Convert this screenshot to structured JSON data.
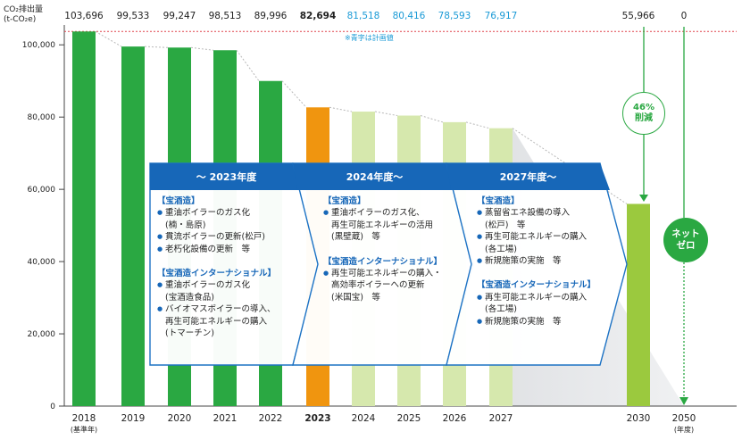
{
  "chart_data": {
    "type": "bar",
    "y_axis_title_line1": "CO₂排出量",
    "y_axis_title_line2": "(t-CO₂e)",
    "ylim": [
      0,
      105000
    ],
    "yticks": [
      0,
      20000,
      40000,
      60000,
      80000,
      100000
    ],
    "ytick_labels": [
      "0",
      "20,000",
      "40,000",
      "60,000",
      "80,000",
      "100,000"
    ],
    "x_unit_label": "(年度)",
    "categories": [
      "2018",
      "2019",
      "2020",
      "2021",
      "2022",
      "2023",
      "2024",
      "2025",
      "2026",
      "2027",
      "2030",
      "2050"
    ],
    "category_sublabels": {
      "2018": "(基準年)"
    },
    "values": [
      103696,
      99533,
      99247,
      98513,
      89996,
      82694,
      81518,
      80416,
      78593,
      76917,
      55966,
      0
    ],
    "value_labels": [
      "103,696",
      "99,533",
      "99,247",
      "98,513",
      "89,996",
      "82,694",
      "81,518",
      "80,416",
      "78,593",
      "76,917",
      "55,966",
      "0"
    ],
    "bar_kind": [
      "actual",
      "actual",
      "actual",
      "actual",
      "actual",
      "current",
      "plan",
      "plan",
      "plan",
      "plan",
      "target",
      "zero"
    ],
    "note": "※青字は計画値",
    "reduction_label_line1": "46%",
    "reduction_label_line2": "削減",
    "net_zero_line1": "ネット",
    "net_zero_line2": "ゼロ",
    "colors": {
      "actual": "#2aa842",
      "current": "#f0950f",
      "plan": "#d6e8ad",
      "target": "#9bc93e",
      "plan_label": "#1a9ad6",
      "reference_line": "#e0454d",
      "panel_head": "#1767b8",
      "panel_border": "#1c72c4",
      "arrow": "#2aa842"
    }
  },
  "panels": [
    {
      "header": "～ 2023年度",
      "groups": [
        {
          "title": "【宝酒造】",
          "items": [
            {
              "line1": "重油ボイラーのガス化",
              "line2": "(楠・島原)"
            },
            {
              "line1": "貫流ボイラーの更新(松戸)",
              "line2": ""
            },
            {
              "line1": "老朽化設備の更新　等",
              "line2": ""
            }
          ]
        },
        {
          "title": "【宝酒造インターナショナル】",
          "items": [
            {
              "line1": "重油ボイラーのガス化",
              "line2": "(宝酒造食品)"
            },
            {
              "line1": "バイオマスボイラーの導入、",
              "line2": "再生可能エネルギーの購入",
              "line3": "(トマーチン)"
            }
          ]
        }
      ]
    },
    {
      "header": "2024年度～",
      "groups": [
        {
          "title": "【宝酒造】",
          "items": [
            {
              "line1": "重油ボイラーのガス化、",
              "line2": "再生可能エネルギーの活用",
              "line3": "(黒壁蔵)　等"
            }
          ]
        },
        {
          "title": "【宝酒造インターナショナル】",
          "items": [
            {
              "line1": "再生可能エネルギーの購入・",
              "line2": "高効率ボイラーへの更新",
              "line3": "(米国宝)　等"
            }
          ]
        }
      ]
    },
    {
      "header": "2027年度～",
      "groups": [
        {
          "title": "【宝酒造】",
          "items": [
            {
              "line1": "蒸留省エネ設備の導入",
              "line2": "(松戸)　等"
            },
            {
              "line1": "再生可能エネルギーの購入",
              "line2": "(各工場)"
            },
            {
              "line1": "新規施策の実施　等",
              "line2": ""
            }
          ]
        },
        {
          "title": "【宝酒造インターナショナル】",
          "items": [
            {
              "line1": "再生可能エネルギーの購入",
              "line2": "(各工場)"
            },
            {
              "line1": "新規施策の実施　等",
              "line2": ""
            }
          ]
        }
      ]
    }
  ]
}
